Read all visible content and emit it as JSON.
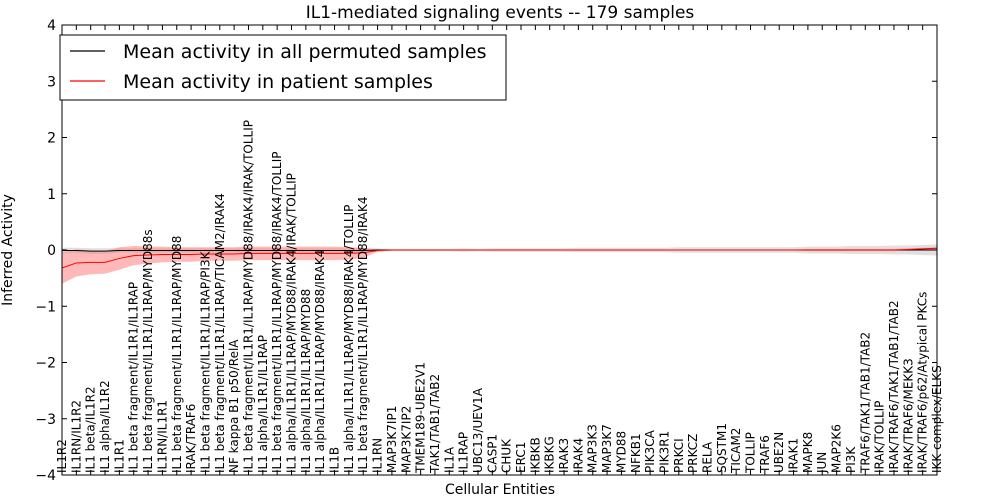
{
  "chart_data": {
    "type": "line",
    "title": "IL1-mediated signaling events -- 179 samples",
    "xlabel": "Cellular Entities",
    "ylabel": "Inferred Activity",
    "ylim": [
      -4,
      4
    ],
    "yticks": [
      -4,
      -3,
      -2,
      -1,
      0,
      1,
      2,
      3,
      4
    ],
    "ytick_labels": [
      "−4",
      "−3",
      "−2",
      "−1",
      "0",
      "1",
      "2",
      "3",
      "4"
    ],
    "grid": false,
    "legend_position": "top-left",
    "categories": [
      "IL1R2",
      "IL1RN/IL1R2",
      "IL1 beta/IL1R2",
      "IL1 alpha/IL1R2",
      "IL1R1",
      "IL1 beta fragment/IL1R1/IL1RAP",
      "IL1 beta fragment/IL1R1/IL1RAP/MYD88s",
      "IL1RN/IL1R1",
      "IL1 beta fragment/IL1R1/IL1RAP/MYD88",
      "IRAK/TRAF6",
      "IL1 beta fragment/IL1R1/IL1RAP/PI3K",
      "IL1 beta fragment/IL1R1/IL1RAP/TICAM2/IRAK4",
      "NF kappa B1 p50/RelA",
      "IL1 beta fragment/IL1R1/IL1RAP/MYD88/IRAK4/IRAK/TOLLIP",
      "IL1 alpha/IL1R1/IL1RAP",
      "IL1 beta fragment/IL1R1/IL1RAP/MYD88/IRAK4/TOLLIP",
      "IL1 alpha/IL1R1/IL1RAP/MYD88/IRAK4/IRAK/TOLLIP",
      "IL1 alpha/IL1R1/IL1RAP/MYD88",
      "IL1 alpha/IL1R1/IL1RAP/MYD88/IRAK4",
      "IL1B",
      "IL1 alpha/IL1R1/IL1RAP/MYD88/IRAK4/TOLLIP",
      "IL1 beta fragment/IL1R1/IL1RAP/MYD88/IRAK4",
      "IL1RN",
      "MAP3K7IP1",
      "MAP3K7IP2",
      "TMEM189-UBE2V1",
      "TAK1/TAB1/TAB2",
      "IL1A",
      "IL1RAP",
      "UBC13/UEV1A",
      "CASP1",
      "CHUK",
      "ERC1",
      "IKBKB",
      "IKBKG",
      "IRAK3",
      "IRAK4",
      "MAP3K3",
      "MAP3K7",
      "MYD88",
      "NFKB1",
      "PIK3CA",
      "PIK3R1",
      "PRKCI",
      "PRKCZ",
      "RELA",
      "SQSTM1",
      "TICAM2",
      "TOLLIP",
      "TRAF6",
      "UBE2N",
      "IRAK1",
      "MAPK8",
      "JUN",
      "MAP2K6",
      "PI3K",
      "TRAF6/TAK1/TAB1/TAB2",
      "IRAK/TOLLIP",
      "IRAK/TRAF6/TAK1/TAB1/TAB2",
      "IRAK/TRAF6/MEKK3",
      "IRAK/TRAF6/p62/Atypical PKCs",
      "IKK complex/ELKS"
    ],
    "series": [
      {
        "name": "Mean activity in all permuted samples",
        "color": "#000000",
        "band_color": "#cccccc",
        "values": [
          -0.01,
          -0.01,
          -0.02,
          -0.02,
          -0.01,
          -0.01,
          -0.01,
          -0.01,
          -0.01,
          -0.01,
          -0.01,
          -0.01,
          -0.01,
          -0.01,
          -0.01,
          -0.01,
          -0.01,
          -0.01,
          -0.01,
          -0.01,
          -0.01,
          -0.01,
          0,
          0,
          0,
          0,
          0,
          0,
          0,
          0,
          0,
          0,
          0,
          0,
          0,
          0,
          0,
          0,
          0,
          0,
          0,
          0,
          0,
          0,
          0,
          0,
          0,
          0,
          0,
          0,
          0,
          0,
          0,
          0,
          0,
          0,
          0,
          0,
          0,
          0,
          0,
          0
        ],
        "band": [
          0.05,
          0.05,
          0.05,
          0.05,
          0.04,
          0.04,
          0.04,
          0.04,
          0.04,
          0.04,
          0.04,
          0.04,
          0.04,
          0.04,
          0.04,
          0.04,
          0.04,
          0.04,
          0.04,
          0.04,
          0.04,
          0.04,
          0.03,
          0.02,
          0.02,
          0.02,
          0.02,
          0.02,
          0.03,
          0.02,
          0.03,
          0.03,
          0.03,
          0.03,
          0.03,
          0.03,
          0.04,
          0.04,
          0.04,
          0.04,
          0.04,
          0.04,
          0.04,
          0.05,
          0.05,
          0.05,
          0.05,
          0.05,
          0.05,
          0.05,
          0.05,
          0.05,
          0.06,
          0.06,
          0.06,
          0.07,
          0.07,
          0.07,
          0.08,
          0.08,
          0.09,
          0.1
        ]
      },
      {
        "name": "Mean activity in patient samples",
        "color": "#ff0000",
        "band_color": "#ff8080",
        "values": [
          -0.32,
          -0.23,
          -0.22,
          -0.22,
          -0.15,
          -0.1,
          -0.09,
          -0.08,
          -0.08,
          -0.08,
          -0.07,
          -0.07,
          -0.07,
          -0.06,
          -0.06,
          -0.06,
          -0.06,
          -0.06,
          -0.06,
          -0.06,
          -0.06,
          -0.05,
          -0.01,
          0,
          0,
          0,
          0,
          0,
          0,
          0,
          0,
          0,
          0,
          0,
          0,
          0,
          0,
          0,
          0,
          0,
          0,
          0,
          0,
          0,
          0,
          0,
          0,
          0,
          0,
          0,
          0,
          0,
          0,
          0,
          0,
          0,
          0,
          0,
          0,
          0.01,
          0.02,
          0.03
        ],
        "band": [
          0.28,
          0.24,
          0.21,
          0.2,
          0.2,
          0.17,
          0.15,
          0.14,
          0.13,
          0.13,
          0.12,
          0.12,
          0.12,
          0.12,
          0.12,
          0.12,
          0.12,
          0.12,
          0.12,
          0.12,
          0.11,
          0.09,
          0.02,
          0.01,
          0.01,
          0.01,
          0.01,
          0.01,
          0.01,
          0.01,
          0.01,
          0.01,
          0.01,
          0.01,
          0.01,
          0.01,
          0.01,
          0.01,
          0.01,
          0.01,
          0.01,
          0.01,
          0.01,
          0.01,
          0.01,
          0.01,
          0.01,
          0.01,
          0.01,
          0.01,
          0.01,
          0.01,
          0.02,
          0.02,
          0.02,
          0.02,
          0.02,
          0.02,
          0.02,
          0.02,
          0.02,
          0.02
        ]
      }
    ]
  }
}
